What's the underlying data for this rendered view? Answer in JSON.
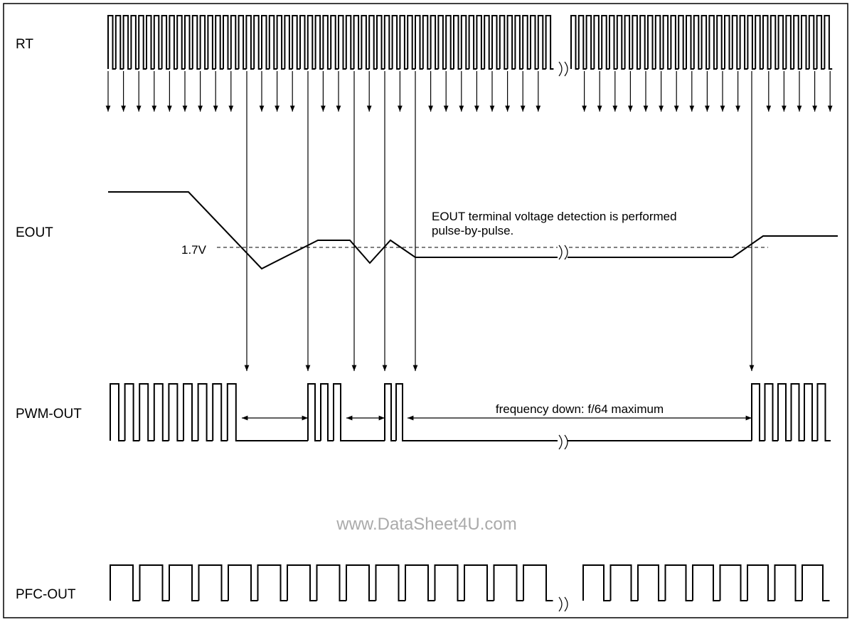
{
  "signals": [
    {
      "label": "RT"
    },
    {
      "label": "EOUT"
    },
    {
      "label": "PWM-OUT"
    },
    {
      "label": "PFC-OUT"
    }
  ],
  "threshold_label": "1.7V",
  "annotations": [
    "EOUT terminal voltage detection is performed",
    "pulse-by-pulse."
  ],
  "frequency_note": "frequency down: f/64 maximum",
  "watermark": "www.DataSheet4U.com"
}
